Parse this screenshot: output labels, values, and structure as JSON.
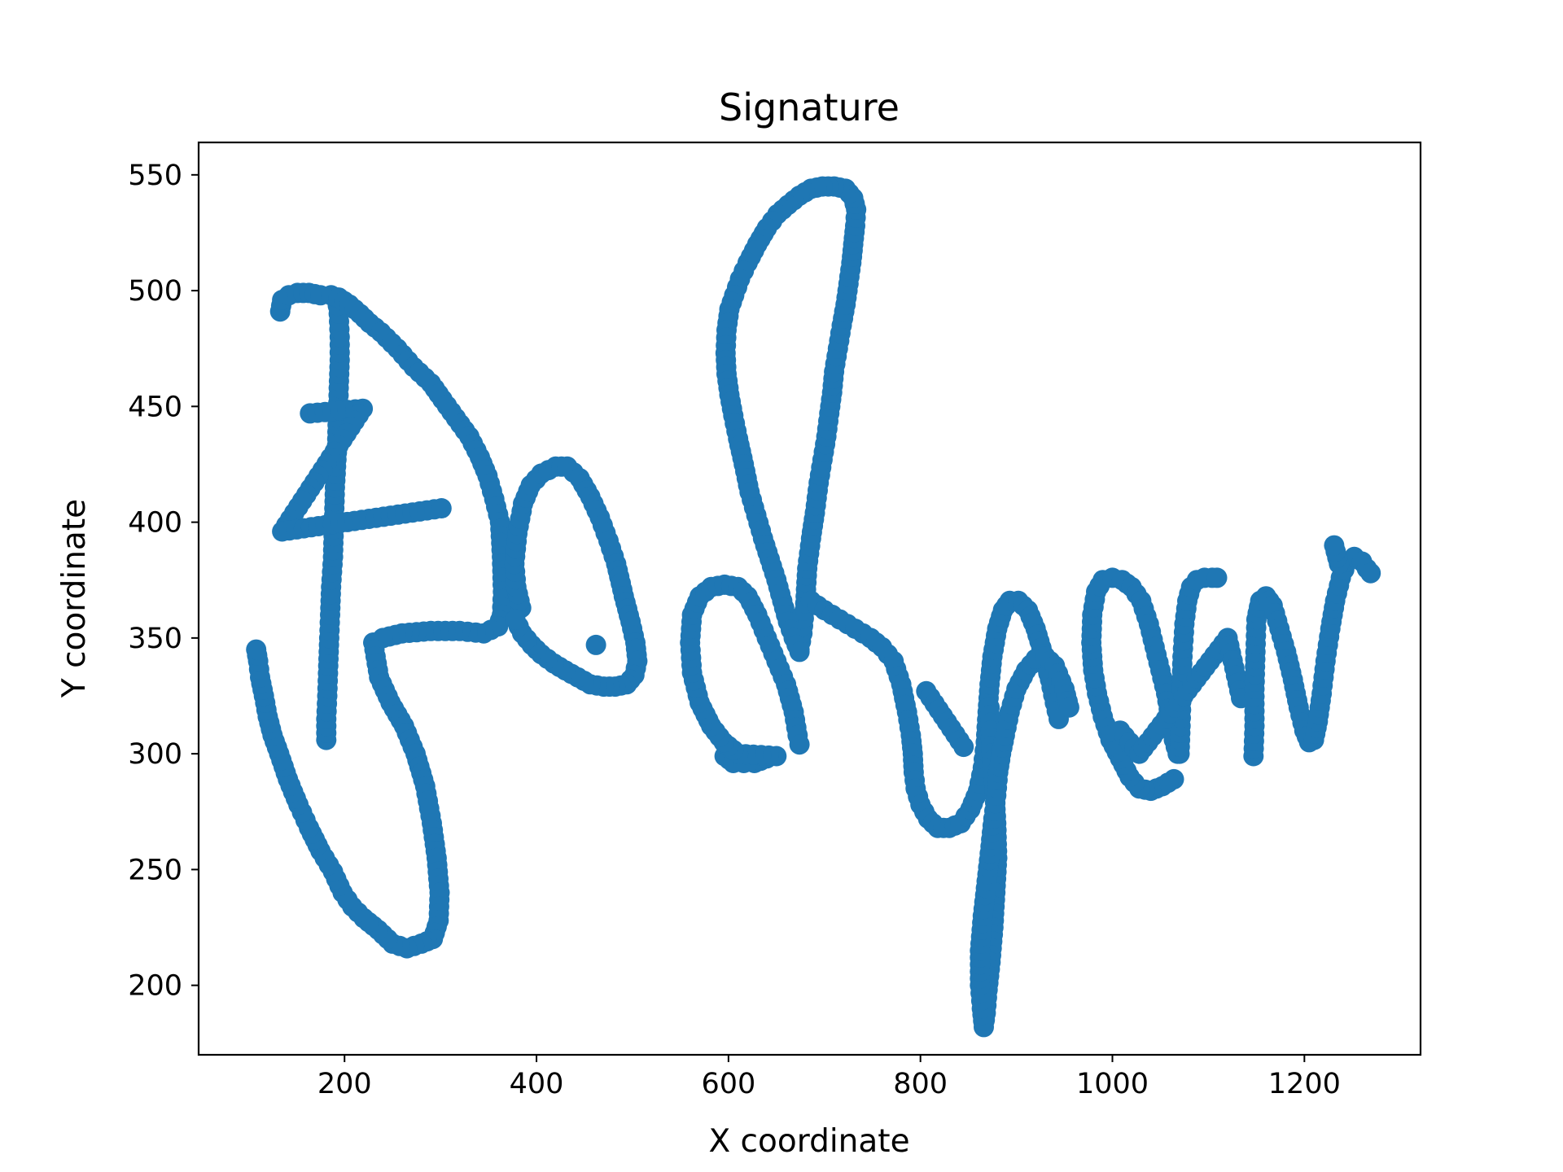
{
  "chart_data": {
    "type": "scatter",
    "title": "Signature",
    "xlabel": "X coordinate",
    "ylabel": "Y coordinate",
    "xlim": [
      48,
      1321
    ],
    "ylim": [
      170,
      564
    ],
    "xticks": [
      200,
      400,
      600,
      800,
      1000,
      1200
    ],
    "yticks": [
      200,
      250,
      300,
      350,
      400,
      450,
      500,
      550
    ],
    "grid": false,
    "legend": "none",
    "color": "#1f77b4",
    "strokes": [
      [
        [
          181,
          306
        ],
        [
          181,
          315
        ],
        [
          182,
          325
        ],
        [
          183,
          338
        ],
        [
          184,
          350
        ],
        [
          185,
          360
        ],
        [
          186,
          372
        ],
        [
          188,
          385
        ],
        [
          189,
          400
        ],
        [
          190,
          415
        ],
        [
          192,
          430
        ],
        [
          193,
          445
        ],
        [
          194,
          458
        ],
        [
          195,
          470
        ],
        [
          195,
          480
        ],
        [
          194,
          490
        ],
        [
          192,
          497
        ]
      ],
      [
        [
          133,
          491
        ],
        [
          135,
          496
        ],
        [
          142,
          498
        ],
        [
          151,
          499
        ],
        [
          163,
          499
        ],
        [
          175,
          498
        ],
        [
          186,
          498
        ],
        [
          194,
          497
        ],
        [
          205,
          494
        ],
        [
          216,
          490
        ],
        [
          226,
          486
        ],
        [
          238,
          482
        ],
        [
          255,
          475
        ],
        [
          272,
          467
        ],
        [
          290,
          460
        ],
        [
          302,
          453
        ],
        [
          316,
          445
        ],
        [
          330,
          437
        ],
        [
          341,
          428
        ],
        [
          349,
          420
        ],
        [
          356,
          410
        ],
        [
          362,
          400
        ],
        [
          364,
          385
        ],
        [
          365,
          370
        ],
        [
          364,
          360
        ],
        [
          360,
          355
        ],
        [
          345,
          352
        ],
        [
          320,
          353
        ],
        [
          290,
          353
        ],
        [
          260,
          352
        ],
        [
          240,
          350
        ],
        [
          230,
          348
        ]
      ],
      [
        [
          230,
          348
        ],
        [
          236,
          333
        ],
        [
          248,
          322
        ],
        [
          262,
          312
        ],
        [
          274,
          300
        ],
        [
          284,
          286
        ],
        [
          291,
          270
        ],
        [
          296,
          255
        ],
        [
          299,
          240
        ],
        [
          298,
          228
        ],
        [
          292,
          220
        ],
        [
          280,
          218
        ],
        [
          265,
          216
        ],
        [
          250,
          218
        ],
        [
          235,
          224
        ],
        [
          220,
          229
        ],
        [
          208,
          234
        ],
        [
          198,
          240
        ],
        [
          188,
          249
        ],
        [
          175,
          258
        ],
        [
          163,
          268
        ],
        [
          152,
          278
        ],
        [
          141,
          289
        ],
        [
          132,
          300
        ],
        [
          125,
          308
        ],
        [
          120,
          316
        ],
        [
          116,
          325
        ],
        [
          112,
          333
        ],
        [
          110,
          340
        ],
        [
          108,
          345
        ]
      ],
      [
        [
          164,
          447
        ],
        [
          219,
          449
        ],
        [
          135,
          396
        ],
        [
          301,
          406
        ]
      ],
      [
        [
          384,
          363
        ],
        [
          379,
          372
        ],
        [
          377,
          382
        ],
        [
          380,
          395
        ],
        [
          386,
          408
        ],
        [
          394,
          416
        ],
        [
          405,
          421
        ],
        [
          420,
          424
        ],
        [
          432,
          424
        ],
        [
          445,
          419
        ],
        [
          456,
          411
        ],
        [
          466,
          402
        ],
        [
          475,
          392
        ],
        [
          483,
          382
        ],
        [
          491,
          368
        ],
        [
          498,
          357
        ],
        [
          503,
          348
        ],
        [
          505,
          340
        ],
        [
          502,
          334
        ],
        [
          494,
          330
        ],
        [
          482,
          329
        ],
        [
          470,
          329
        ],
        [
          456,
          330
        ],
        [
          443,
          333
        ],
        [
          430,
          336
        ],
        [
          418,
          339
        ],
        [
          405,
          343
        ],
        [
          395,
          347
        ],
        [
          385,
          352
        ],
        [
          378,
          358
        ]
      ],
      [
        [
          462,
          347
        ]
      ],
      [
        [
          596,
          299
        ],
        [
          605,
          296
        ],
        [
          616,
          296
        ],
        [
          627,
          296
        ],
        [
          640,
          298
        ],
        [
          650,
          299
        ],
        [
          610,
          300
        ],
        [
          595,
          305
        ],
        [
          582,
          312
        ],
        [
          570,
          322
        ],
        [
          562,
          335
        ],
        [
          560,
          348
        ],
        [
          562,
          360
        ],
        [
          570,
          368
        ],
        [
          582,
          372
        ],
        [
          596,
          373
        ],
        [
          610,
          372
        ],
        [
          620,
          368
        ],
        [
          630,
          360
        ],
        [
          640,
          350
        ],
        [
          650,
          340
        ],
        [
          660,
          330
        ],
        [
          668,
          318
        ],
        [
          672,
          308
        ],
        [
          674,
          304
        ]
      ],
      [
        [
          674,
          345
        ],
        [
          677,
          352
        ],
        [
          680,
          365
        ],
        [
          682,
          380
        ],
        [
          686,
          393
        ],
        [
          690,
          404
        ],
        [
          694,
          417
        ],
        [
          698,
          427
        ],
        [
          702,
          437
        ],
        [
          705,
          447
        ],
        [
          708,
          456
        ],
        [
          710,
          465
        ],
        [
          714,
          475
        ],
        [
          718,
          485
        ],
        [
          722,
          494
        ],
        [
          725,
          503
        ],
        [
          728,
          512
        ],
        [
          730,
          520
        ],
        [
          732,
          528
        ],
        [
          733,
          535
        ],
        [
          730,
          540
        ],
        [
          722,
          544
        ],
        [
          710,
          545
        ],
        [
          698,
          545
        ],
        [
          686,
          544
        ],
        [
          674,
          541
        ],
        [
          662,
          537
        ],
        [
          651,
          533
        ],
        [
          640,
          527
        ],
        [
          630,
          520
        ],
        [
          620,
          512
        ],
        [
          612,
          505
        ],
        [
          606,
          498
        ],
        [
          601,
          492
        ],
        [
          598,
          483
        ],
        [
          597,
          473
        ],
        [
          598,
          464
        ],
        [
          601,
          455
        ],
        [
          605,
          446
        ],
        [
          610,
          436
        ],
        [
          616,
          425
        ],
        [
          622,
          413
        ],
        [
          629,
          403
        ],
        [
          636,
          393
        ],
        [
          643,
          384
        ],
        [
          650,
          375
        ],
        [
          656,
          366
        ],
        [
          662,
          357
        ],
        [
          668,
          350
        ],
        [
          674,
          344
        ]
      ],
      [
        [
          686,
          366
        ],
        [
          700,
          362
        ],
        [
          716,
          358
        ],
        [
          732,
          354
        ],
        [
          748,
          350
        ],
        [
          760,
          346
        ],
        [
          772,
          340
        ],
        [
          780,
          330
        ],
        [
          786,
          318
        ],
        [
          790,
          308
        ],
        [
          792,
          300
        ],
        [
          793,
          292
        ],
        [
          795,
          285
        ],
        [
          800,
          278
        ],
        [
          808,
          272
        ],
        [
          818,
          268
        ],
        [
          830,
          268
        ],
        [
          842,
          270
        ],
        [
          852,
          276
        ],
        [
          860,
          284
        ],
        [
          865,
          294
        ],
        [
          868,
          305
        ],
        [
          870,
          318
        ],
        [
          872,
          330
        ],
        [
          875,
          342
        ],
        [
          880,
          354
        ],
        [
          886,
          362
        ],
        [
          893,
          366
        ],
        [
          902,
          366
        ],
        [
          912,
          362
        ],
        [
          920,
          354
        ],
        [
          928,
          343
        ],
        [
          935,
          332
        ],
        [
          940,
          322
        ],
        [
          944,
          315
        ]
      ],
      [
        [
          806,
          327
        ],
        [
          845,
          303
        ]
      ],
      [
        [
          872,
          320
        ],
        [
          874,
          300
        ],
        [
          877,
          285
        ],
        [
          879,
          270
        ],
        [
          880,
          255
        ],
        [
          878,
          240
        ],
        [
          876,
          225
        ],
        [
          873,
          210
        ],
        [
          870,
          198
        ],
        [
          868,
          188
        ],
        [
          866,
          182
        ],
        [
          864,
          190
        ],
        [
          862,
          200
        ],
        [
          862,
          215
        ],
        [
          865,
          230
        ],
        [
          869,
          245
        ],
        [
          873,
          260
        ],
        [
          876,
          272
        ],
        [
          879,
          282
        ],
        [
          881,
          292
        ],
        [
          884,
          300
        ],
        [
          888,
          308
        ],
        [
          893,
          318
        ],
        [
          900,
          328
        ],
        [
          910,
          336
        ],
        [
          920,
          341
        ],
        [
          930,
          342
        ],
        [
          940,
          338
        ],
        [
          950,
          328
        ],
        [
          955,
          320
        ]
      ],
      [
        [
          1064,
          289
        ],
        [
          1052,
          286
        ],
        [
          1040,
          284
        ],
        [
          1028,
          285
        ],
        [
          1018,
          290
        ],
        [
          1008,
          298
        ],
        [
          998,
          306
        ],
        [
          990,
          316
        ],
        [
          984,
          326
        ],
        [
          980,
          336
        ],
        [
          978,
          348
        ],
        [
          979,
          360
        ],
        [
          983,
          370
        ],
        [
          990,
          375
        ],
        [
          1000,
          376
        ],
        [
          1010,
          375
        ],
        [
          1020,
          372
        ],
        [
          1030,
          366
        ],
        [
          1038,
          356
        ],
        [
          1044,
          346
        ],
        [
          1050,
          336
        ],
        [
          1056,
          326
        ],
        [
          1060,
          316
        ],
        [
          1064,
          306
        ],
        [
          1068,
          300
        ],
        [
          1070,
          300
        ],
        [
          1071,
          312
        ],
        [
          1072,
          326
        ],
        [
          1073,
          342
        ],
        [
          1075,
          356
        ],
        [
          1078,
          366
        ],
        [
          1082,
          372
        ],
        [
          1088,
          375
        ],
        [
          1096,
          376
        ],
        [
          1104,
          376
        ],
        [
          1109,
          376
        ]
      ],
      [
        [
          1008,
          310
        ],
        [
          1028,
          300
        ],
        [
          1120,
          350
        ],
        [
          1134,
          324
        ]
      ],
      [
        [
          1147,
          299
        ],
        [
          1148,
          312
        ],
        [
          1148,
          328
        ],
        [
          1149,
          344
        ],
        [
          1150,
          358
        ],
        [
          1154,
          366
        ],
        [
          1160,
          368
        ],
        [
          1167,
          364
        ],
        [
          1174,
          354
        ],
        [
          1181,
          344
        ],
        [
          1188,
          332
        ],
        [
          1194,
          320
        ],
        [
          1200,
          310
        ],
        [
          1205,
          305
        ],
        [
          1210,
          306
        ],
        [
          1214,
          314
        ],
        [
          1218,
          326
        ],
        [
          1222,
          340
        ],
        [
          1227,
          354
        ],
        [
          1232,
          366
        ],
        [
          1238,
          376
        ],
        [
          1245,
          383
        ],
        [
          1252,
          385
        ],
        [
          1260,
          383
        ],
        [
          1265,
          380
        ],
        [
          1269,
          378
        ]
      ],
      [
        [
          1236,
          382
        ],
        [
          1231,
          390
        ]
      ]
    ]
  }
}
